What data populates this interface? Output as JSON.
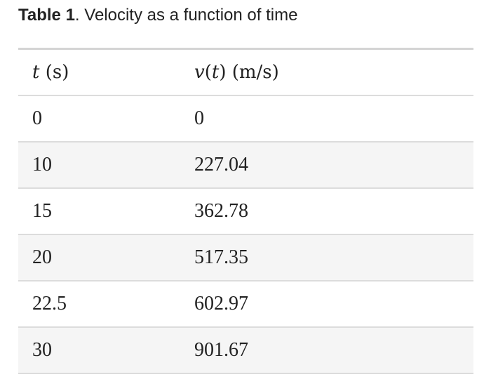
{
  "caption": {
    "label": "Table 1",
    "text": ". Velocity as a function of time"
  },
  "table": {
    "headers": {
      "t_var": "t",
      "t_unit": " (s)",
      "v_func": "v",
      "v_open": "(",
      "v_arg": "t",
      "v_close": ") (m/s)"
    },
    "rows": [
      {
        "t": "0",
        "v": "0"
      },
      {
        "t": "10",
        "v": "227.04"
      },
      {
        "t": "15",
        "v": "362.78"
      },
      {
        "t": "20",
        "v": "517.35"
      },
      {
        "t": "22.5",
        "v": "602.97"
      },
      {
        "t": "30",
        "v": "901.67"
      }
    ]
  }
}
